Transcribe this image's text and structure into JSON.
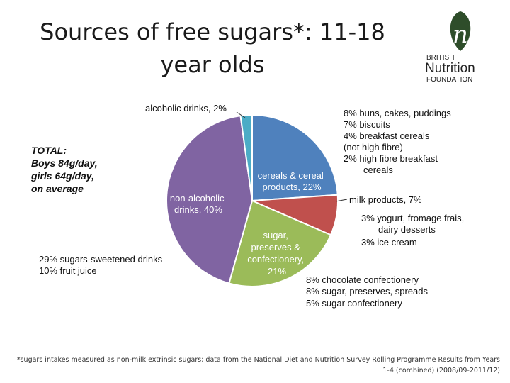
{
  "title": "Sources of free sugars*: 11-18 year olds",
  "logo": {
    "mark": "n",
    "line1": "BRITISH",
    "line2": "Nutrition",
    "line3": "FOUNDATION",
    "accent": "#2e4d2a"
  },
  "chart_data": {
    "type": "pie",
    "slices": [
      {
        "label": "cereals & cereal products, 22%",
        "value": 22,
        "color": "#4f81bd",
        "text_color": "#ffffff"
      },
      {
        "label": "milk products, 7%",
        "value": 7,
        "color": "#c0504d",
        "text_color": "#111111"
      },
      {
        "label": "sugar, preserves & confectionery, 21%",
        "value": 21,
        "color": "#9bbb59",
        "text_color": "#ffffff"
      },
      {
        "label": "non-alcoholic drinks, 40%",
        "value": 40,
        "color": "#8064a2",
        "text_color": "#ffffff"
      },
      {
        "label": "alcoholic drinks, 2%",
        "value": 2,
        "color": "#4bacc6",
        "text_color": "#111111"
      }
    ],
    "total_note": [
      "TOTAL:",
      "Boys 84g/day,",
      "girls 64g/day,",
      "on average"
    ],
    "breakdowns": {
      "cereals": [
        "8% buns, cakes, puddings",
        "7% biscuits",
        "4% breakfast cereals",
        "(not high fibre)",
        "2% high fibre breakfast",
        "cereals"
      ],
      "milk": [
        "3% yogurt, fromage frais,",
        "dairy desserts",
        "3% ice cream"
      ],
      "sugar": [
        "8% chocolate confectionery",
        "8% sugar, preserves, spreads",
        "5% sugar confectionery"
      ],
      "drinks": [
        "29% sugars-sweetened drinks",
        "10% fruit juice"
      ]
    }
  },
  "footnote": "*sugars intakes measured as non-milk extrinsic sugars; data from the National Diet and Nutrition Survey Rolling Programme Results from Years 1-4 (combined) (2008/09-2011/12)"
}
